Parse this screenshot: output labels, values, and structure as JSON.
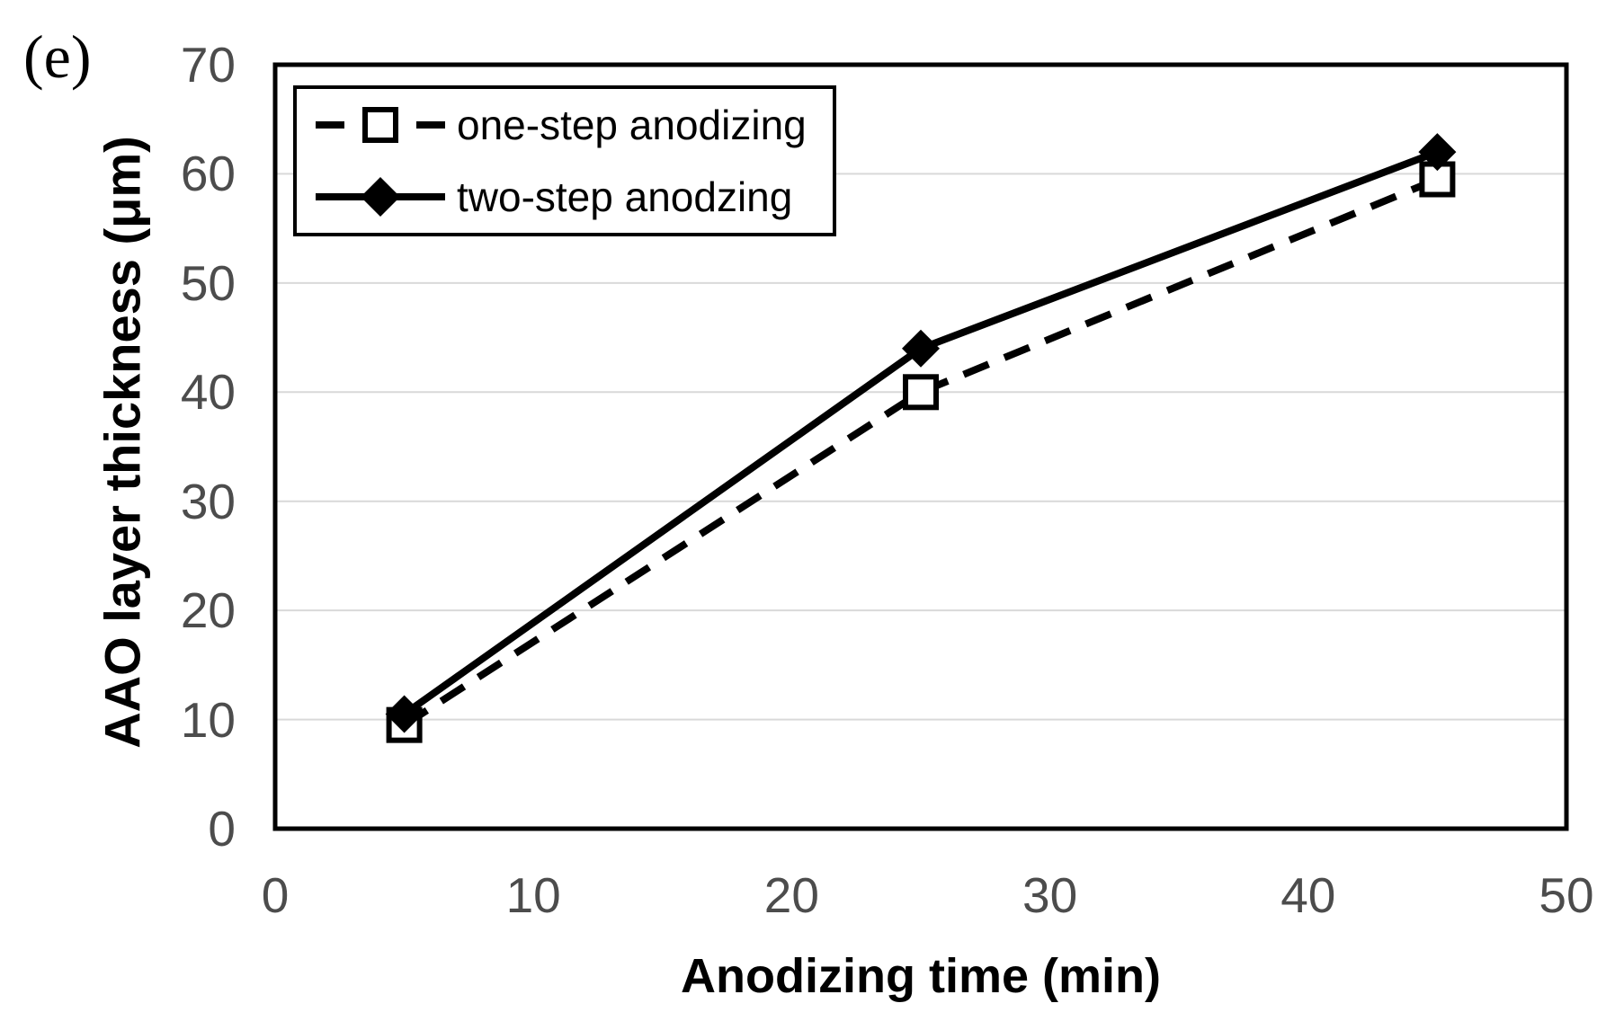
{
  "figure": {
    "panel_label": "(e)"
  },
  "chart_data": {
    "type": "line",
    "title": "",
    "xlabel": "Anodizing time (min)",
    "ylabel": "AAO layer thickness (μm)",
    "xlim": [
      0,
      50
    ],
    "ylim": [
      0,
      70
    ],
    "xticks": [
      0,
      10,
      20,
      30,
      40,
      50
    ],
    "yticks": [
      0,
      10,
      20,
      30,
      40,
      50,
      60,
      70
    ],
    "grid": "horizontal-gridlines",
    "legend_position": "top-left-inside",
    "series": [
      {
        "name": "one-step anodizing",
        "line_style": "dashed",
        "marker": "open-square",
        "color": "#000000",
        "x": [
          5,
          25,
          45
        ],
        "y": [
          9.5,
          40,
          59.5
        ]
      },
      {
        "name": "two-step anodzing",
        "line_style": "solid",
        "marker": "filled-diamond",
        "color": "#000000",
        "x": [
          5,
          25,
          45
        ],
        "y": [
          10.5,
          44,
          62
        ]
      }
    ],
    "colors": {
      "gridline": "#d9d9d9",
      "tick_label": "#4c4c4c",
      "axis_border": "#000000",
      "background": "#ffffff"
    }
  }
}
